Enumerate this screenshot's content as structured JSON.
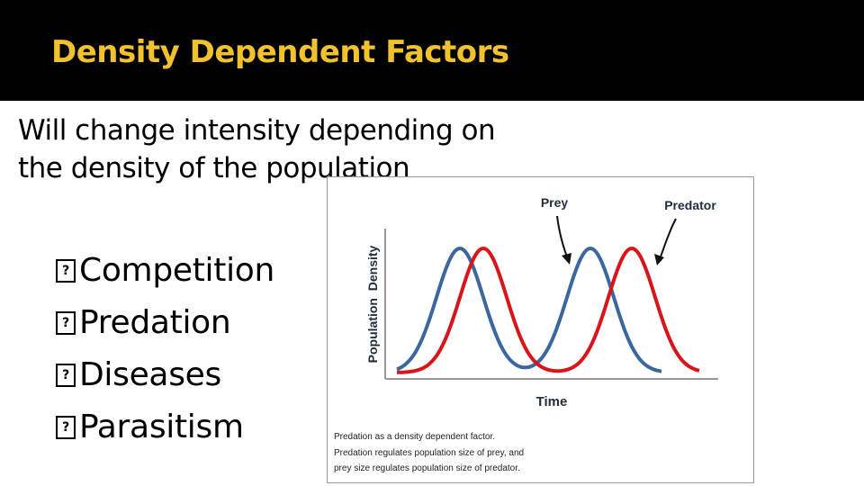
{
  "slide": {
    "title": "Density Dependent Factors",
    "subtitle": "Will  change intensity depending on the density of the population",
    "bullets": [
      "Competition",
      "Predation",
      "Diseases",
      "Parasitism"
    ],
    "bullet_icon": "missing-glyph-box-icon",
    "colors": {
      "title": "#f2c12e",
      "title_bar": "#000000",
      "prey": "#3a679e",
      "predator": "#d8151b"
    }
  },
  "figure": {
    "ylabel": "Population  Density",
    "xlabel": "Time",
    "prey_label": "Prey",
    "predator_label": "Predator",
    "caption": [
      "Predation as a density dependent factor.",
      "Predation regulates population size of prey, and",
      "prey size regulates population size of predator."
    ]
  }
}
